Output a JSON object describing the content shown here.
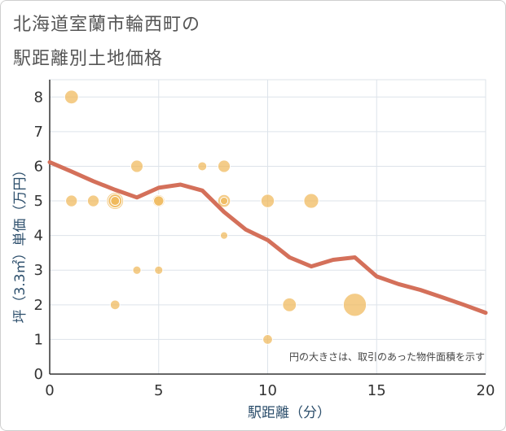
{
  "chart_data": {
    "type": "scatter",
    "title": "北海道室蘭市輪西町の駅距離別土地価格",
    "title_lines": [
      "北海道室蘭市輪西町の",
      "駅距離別土地価格"
    ],
    "xlabel": "駅距離（分）",
    "ylabel": "坪（3.3㎡）単価（万円）",
    "xlim": [
      0,
      20
    ],
    "ylim": [
      0,
      8.5
    ],
    "xticks": [
      0,
      5,
      10,
      15,
      20
    ],
    "yticks": [
      0,
      1,
      2,
      3,
      4,
      5,
      6,
      7,
      8
    ],
    "grid": true,
    "note": "円の大きさは、取引のあった物件面積を示す",
    "colors": {
      "bubble": "#f0b95a",
      "trend": "#d4705a",
      "grid": "#dde3ea"
    },
    "scatter_points": [
      {
        "x": 1,
        "y": 8,
        "size": 3
      },
      {
        "x": 1,
        "y": 5,
        "size": 2
      },
      {
        "x": 2,
        "y": 5,
        "size": 2
      },
      {
        "x": 3,
        "y": 5,
        "size": 5
      },
      {
        "x": 3,
        "y": 5,
        "size": 3
      },
      {
        "x": 3,
        "y": 5,
        "size": 1
      },
      {
        "x": 3,
        "y": 2,
        "size": 1.2
      },
      {
        "x": 4,
        "y": 6,
        "size": 2.3
      },
      {
        "x": 4,
        "y": 3,
        "size": 0.8
      },
      {
        "x": 5,
        "y": 5,
        "size": 2.3
      },
      {
        "x": 5,
        "y": 5,
        "size": 1.4
      },
      {
        "x": 5,
        "y": 3,
        "size": 0.8
      },
      {
        "x": 7,
        "y": 6,
        "size": 1
      },
      {
        "x": 8,
        "y": 6,
        "size": 2.3
      },
      {
        "x": 8,
        "y": 5,
        "size": 2.5
      },
      {
        "x": 8,
        "y": 5,
        "size": 0.6
      },
      {
        "x": 8,
        "y": 4,
        "size": 0.6
      },
      {
        "x": 10,
        "y": 5,
        "size": 2.8
      },
      {
        "x": 10,
        "y": 1,
        "size": 1.2
      },
      {
        "x": 11,
        "y": 2,
        "size": 3
      },
      {
        "x": 12,
        "y": 5,
        "size": 3.6
      },
      {
        "x": 14,
        "y": 2,
        "size": 10
      }
    ],
    "trend_line": {
      "x": [
        0,
        1,
        2,
        3,
        4,
        5,
        6,
        7,
        8,
        9,
        10,
        11,
        12,
        13,
        14,
        15,
        16,
        17,
        18,
        19,
        20
      ],
      "y": [
        6.12,
        5.85,
        5.57,
        5.32,
        5.1,
        5.38,
        5.47,
        5.3,
        4.68,
        4.17,
        3.87,
        3.37,
        3.11,
        3.3,
        3.37,
        2.82,
        2.6,
        2.43,
        2.22,
        2.0,
        1.77
      ]
    }
  }
}
